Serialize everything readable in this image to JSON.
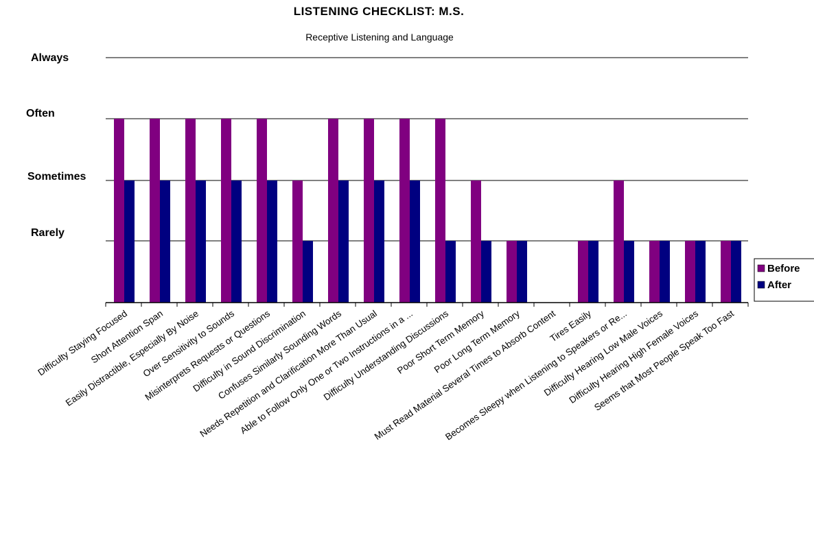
{
  "chart_data": {
    "type": "bar",
    "title": "LISTENING CHECKLIST:  M.S.",
    "subtitle": "Receptive Listening and Language",
    "y_levels": [
      "Rarely",
      "Sometimes",
      "Often",
      "Always"
    ],
    "ylim": [
      0,
      4
    ],
    "grid": true,
    "legend_position": "right",
    "categories": [
      "Difficulty Staying Focused",
      "Short Attention Span",
      "Easily Distractible, Especially By Noise",
      "Over Sensitivity to Sounds",
      "Misinterprets Requests or Questions",
      "Difficulty in Sound Discrimination",
      "Confuses Similarly Sounding Words",
      "Needs Repetition and Clarification More Than Usual",
      "Able to Follow Only One or Two Instructions in a ...",
      "Difficulty Understanding Discussions",
      "Poor Short Term Memory",
      "Poor Long Term Memory",
      "Must Read Material Several Times to Absorb Content",
      "Tires Easily",
      "Becomes Sleepy when Listening to Speakers or Re...",
      "Difficulty Hearing Low Male Voices",
      "Difficulty Hearing High Female Voices",
      "Seems that Most People Speak Too Fast"
    ],
    "series": [
      {
        "name": "Before",
        "color": "#800080",
        "values": [
          3,
          3,
          3,
          3,
          3,
          2,
          3,
          3,
          3,
          3,
          2,
          1,
          0,
          1,
          2,
          1,
          1,
          1
        ]
      },
      {
        "name": "After",
        "color": "#000080",
        "values": [
          2,
          2,
          2,
          2,
          2,
          1,
          2,
          2,
          2,
          1,
          1,
          1,
          0,
          1,
          1,
          1,
          1,
          1
        ]
      }
    ]
  }
}
